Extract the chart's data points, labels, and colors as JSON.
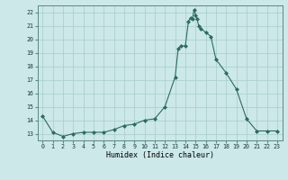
{
  "x": [
    0,
    1,
    2,
    3,
    4,
    5,
    6,
    7,
    8,
    9,
    10,
    11,
    12,
    13,
    13.3,
    13.6,
    14,
    14.3,
    14.5,
    14.7,
    14.85,
    15,
    15.15,
    15.3,
    15.5,
    16,
    16.5,
    17,
    18,
    19,
    20,
    21,
    22,
    23
  ],
  "y": [
    14.3,
    13.1,
    12.8,
    13.0,
    13.1,
    13.1,
    13.1,
    13.3,
    13.6,
    13.7,
    14.0,
    14.1,
    15.0,
    17.2,
    19.3,
    19.5,
    19.5,
    21.3,
    21.6,
    21.5,
    22.2,
    21.8,
    21.5,
    21.0,
    20.8,
    20.5,
    20.2,
    18.5,
    17.5,
    16.3,
    14.1,
    13.2,
    13.2,
    13.2
  ],
  "xlabel": "Humidex (Indice chaleur)",
  "xlim": [
    -0.5,
    23.5
  ],
  "ylim": [
    12.5,
    22.5
  ],
  "yticks": [
    13,
    14,
    15,
    16,
    17,
    18,
    19,
    20,
    21,
    22
  ],
  "xticks": [
    0,
    1,
    2,
    3,
    4,
    5,
    6,
    7,
    8,
    9,
    10,
    11,
    12,
    13,
    14,
    15,
    16,
    17,
    18,
    19,
    20,
    21,
    22,
    23
  ],
  "line_color": "#2d6b5e",
  "marker_color": "#2d6b5e",
  "bg_color": "#cce8e8",
  "grid_color": "#a8cccc"
}
